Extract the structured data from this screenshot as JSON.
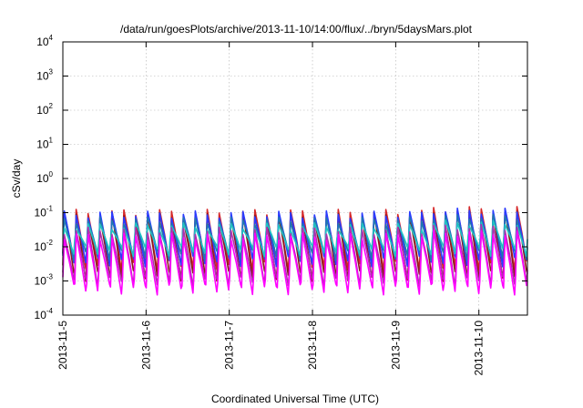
{
  "chart_data": {
    "type": "line",
    "title": "/data/run/goesPlots/archive/2013-11-10/14:00/flux/../bryn/5daysMars.plot",
    "xlabel": "Coordinated Universal Time (UTC)",
    "ylabel": "cSv/day",
    "yscale": "log",
    "ylim": [
      0.0001,
      10000
    ],
    "y_ticks": [
      {
        "base": "10",
        "exp": "-4",
        "value": 0.0001
      },
      {
        "base": "10",
        "exp": "-3",
        "value": 0.001
      },
      {
        "base": "10",
        "exp": "-2",
        "value": 0.01
      },
      {
        "base": "10",
        "exp": "-1",
        "value": 0.1
      },
      {
        "base": "10",
        "exp": "0",
        "value": 1
      },
      {
        "base": "10",
        "exp": "1",
        "value": 10
      },
      {
        "base": "10",
        "exp": "2",
        "value": 100
      },
      {
        "base": "10",
        "exp": "3",
        "value": 1000
      },
      {
        "base": "10",
        "exp": "4",
        "value": 10000
      }
    ],
    "xlim": [
      "2013-11-05",
      "2013-11-10 14:00"
    ],
    "x_ticks": [
      "2013-11-5",
      "2013-11-6",
      "2013-11-7",
      "2013-11-8",
      "2013-11-9",
      "2013-11-10"
    ],
    "grid": true,
    "cycles_per_day": 7,
    "series": [
      {
        "color": "#d62728",
        "peak": 0.1,
        "trough": 0.003
      },
      {
        "color": "#8b1a1a",
        "peak": 0.08,
        "trough": 0.0015
      },
      {
        "color": "#2a3bff",
        "peak": 0.09,
        "trough": 0.004
      },
      {
        "color": "#1f77b4",
        "peak": 0.06,
        "trough": 0.006
      },
      {
        "color": "#20c4c4",
        "peak": 0.04,
        "trough": 0.008
      },
      {
        "color": "#b030b0",
        "peak": 0.03,
        "trough": 0.001
      },
      {
        "color": "#ff00ff",
        "peak": 0.02,
        "trough": 0.0006
      }
    ]
  }
}
